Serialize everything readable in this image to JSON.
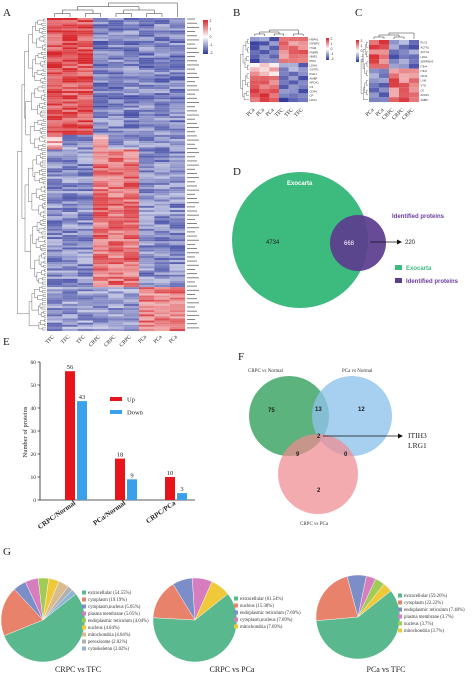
{
  "panels": {
    "A": "A",
    "B": "B",
    "C": "C",
    "D": "D",
    "E": "E",
    "F": "F",
    "G": "G"
  },
  "heatmapA": {
    "columns": [
      "TFC",
      "TFC",
      "TFC",
      "CRPC",
      "CRPC",
      "CRPC",
      "PCa",
      "PCa",
      "PCa"
    ],
    "scale": [
      "2",
      "1",
      "0",
      "-1",
      "-2"
    ]
  },
  "heatmapB": {
    "columns": [
      "PCa",
      "PCa",
      "PCa",
      "TFC",
      "TFC",
      "TFC"
    ],
    "scale": [
      "2",
      "1",
      "0",
      "-1",
      "-2"
    ],
    "rows": [
      "HSPA1",
      "IGFBP2",
      "ITIH4",
      "FABP5",
      "NME1",
      "PKM",
      "LDHA",
      "GSTP1",
      "PGK1",
      "AMBP",
      "APOA1",
      "C3",
      "CD44",
      "CP",
      "LRG1"
    ]
  },
  "heatmapC": {
    "columns": [
      "PCa",
      "PCa",
      "CRPC",
      "CRPC",
      "CRPC"
    ],
    "scale": [
      "2",
      "1",
      "0",
      "-1",
      "-2"
    ],
    "rows": [
      "PLG2",
      "ACTN1",
      "ACTG1",
      "LRG1",
      "SERPINA3",
      "ITIH4",
      "ITIH3",
      "CD44",
      "LUM",
      "VTN",
      "C6",
      "AZGP1",
      "AMBP"
    ]
  },
  "venn2": {
    "set1_label": "Exocarta",
    "set2_label": "Identified proteins",
    "only_set1": "4734",
    "intersection": "668",
    "only_set2": "220"
  },
  "chart_data": {
    "type": "bar",
    "categories": [
      "CRPC/Normal",
      "PCa/Normal",
      "CRPC/PCa"
    ],
    "series": [
      {
        "name": "Up",
        "values": [
          56,
          18,
          10
        ]
      },
      {
        "name": "Down",
        "values": [
          43,
          9,
          3
        ]
      }
    ],
    "ylabel": "Number of proteins",
    "ylim": [
      0,
      60
    ],
    "legend": "top-right",
    "colors": {
      "Up": "#e8141c",
      "Down": "#3aa0e8"
    }
  },
  "venn3": {
    "labels": [
      "CRPC vs Normal",
      "PCa vs Normal",
      "CRPC vs PCa"
    ],
    "only_a": "75",
    "ab": "13",
    "only_b": "12",
    "abc": "2",
    "ac": "9",
    "bc": "0",
    "only_c": "2",
    "callout": [
      "ITIH3",
      "LRG1"
    ]
  },
  "pies": [
    {
      "title": "CRPC vs TFC",
      "slices": [
        {
          "label": "extracellular (54.55%)",
          "value": 54.55,
          "color": "#5ab88f"
        },
        {
          "label": "cytoplasm (19.19%)",
          "value": 19.19,
          "color": "#e8826a"
        },
        {
          "label": "cytoplasm,nucleus (5.05%)",
          "value": 5.05,
          "color": "#7b8ec8"
        },
        {
          "label": "plasma membrane (5.05%)",
          "value": 5.05,
          "color": "#d57dbd"
        },
        {
          "label": "endoplasmic reticulum (4.04%)",
          "value": 4.04,
          "color": "#9fcc57"
        },
        {
          "label": "nucleus (4.04%)",
          "value": 4.04,
          "color": "#f0c93a"
        },
        {
          "label": "mitochondria (4.04%)",
          "value": 4.04,
          "color": "#d9bb8f"
        },
        {
          "label": "peroxisome (2.02%)",
          "value": 2.02,
          "color": "#b0b0b0"
        },
        {
          "label": "cytoskeleton (2.02%)",
          "value": 2.02,
          "color": "#8fb4d6"
        }
      ]
    },
    {
      "title": "CRPC vs PCa",
      "slices": [
        {
          "label": "extracellular (61.54%)",
          "value": 61.54,
          "color": "#5ab88f"
        },
        {
          "label": "nucleus (15.38%)",
          "value": 15.38,
          "color": "#e8826a"
        },
        {
          "label": "endoplasmic reticulum (7.69%)",
          "value": 7.69,
          "color": "#7b8ec8"
        },
        {
          "label": "cytoplasm,nucleus (7.69%)",
          "value": 7.69,
          "color": "#d57dbd"
        },
        {
          "label": "mitochondria (7.69%)",
          "value": 7.69,
          "color": "#f0c93a"
        }
      ]
    },
    {
      "title": "PCa vs TFC",
      "slices": [
        {
          "label": "extracellular (59.26%)",
          "value": 59.26,
          "color": "#5ab88f"
        },
        {
          "label": "cytoplasm (22.22%)",
          "value": 22.22,
          "color": "#e8826a"
        },
        {
          "label": "endoplasmic reticulum (7.40%)",
          "value": 7.4,
          "color": "#7b8ec8"
        },
        {
          "label": "plasma membrane (3.7%)",
          "value": 3.7,
          "color": "#d57dbd"
        },
        {
          "label": "nucleus (3.7%)",
          "value": 3.7,
          "color": "#9fcc57"
        },
        {
          "label": "mitochondria (3.7%)",
          "value": 3.7,
          "color": "#f0c93a"
        }
      ]
    }
  ]
}
